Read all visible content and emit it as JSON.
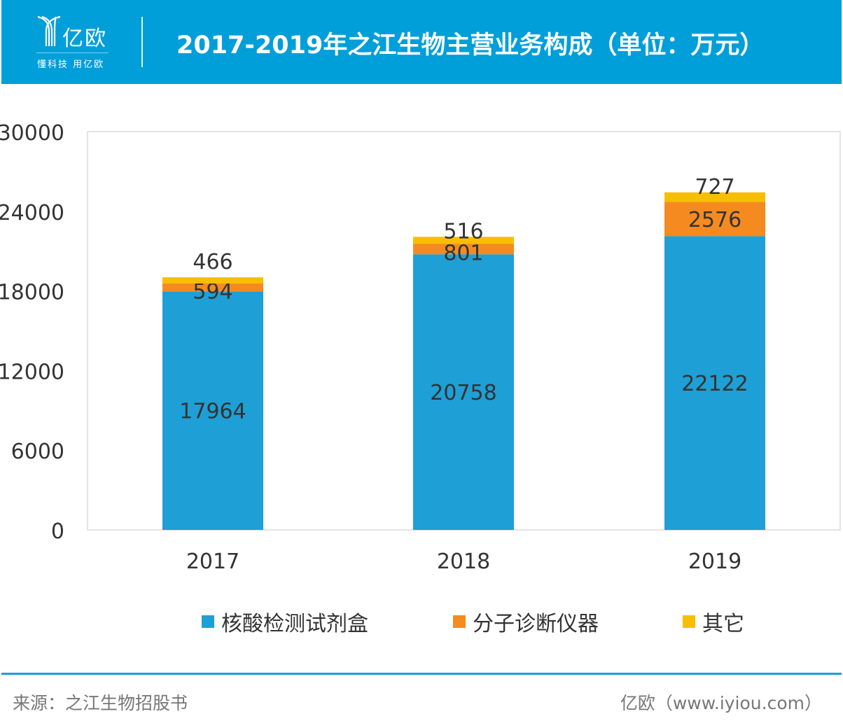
{
  "header": {
    "logo_text": "亿欧",
    "logo_slogan": "懂科技 用亿欧",
    "title": "2017-2019年之江生物主营业务构成（单位：万元）"
  },
  "chart_data": {
    "type": "bar",
    "stacked": true,
    "title": "2017-2019年之江生物主营业务构成（单位：万元）",
    "categories": [
      "2017",
      "2018",
      "2019"
    ],
    "series": [
      {
        "name": "核酸检测试剂盒",
        "color": "#1e9fd5",
        "values": [
          17964,
          20758,
          22122
        ]
      },
      {
        "name": "分子诊断仪器",
        "color": "#f58b20",
        "values": [
          594,
          801,
          2576
        ]
      },
      {
        "name": "其它",
        "color": "#f7bf00",
        "values": [
          466,
          516,
          727
        ]
      }
    ],
    "ylim": [
      0,
      30000
    ],
    "yticks": [
      "0",
      "6000",
      "12000",
      "18000",
      "24000",
      "30000"
    ],
    "legend": "bottom",
    "grid": false
  },
  "footer": {
    "source": "来源：之江生物招股书",
    "brand": "亿欧（www.iyiou.com）"
  }
}
